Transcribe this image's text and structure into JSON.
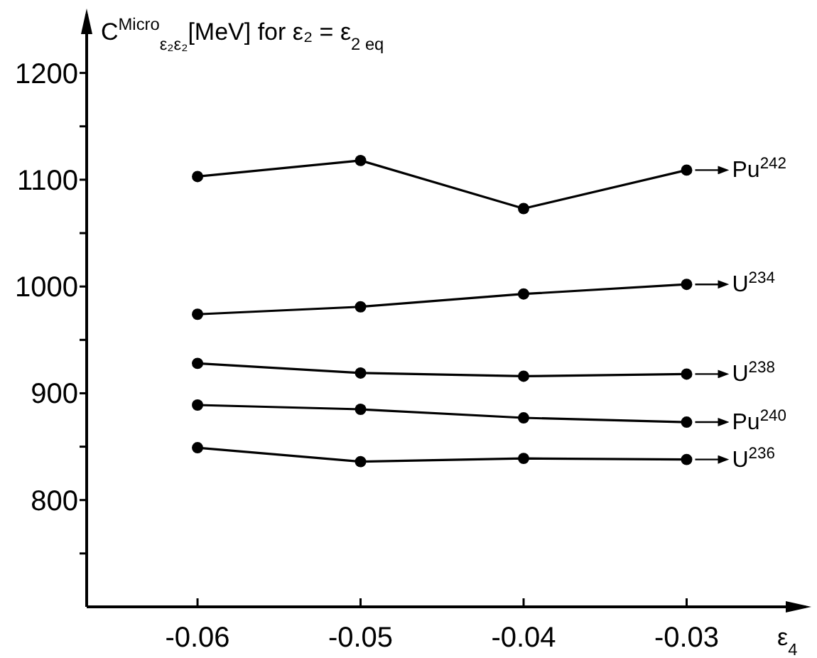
{
  "chart_data": {
    "type": "line",
    "ylabel": "C$^{Micro}$$_{ε₂ε₂}$[MeV]  for ε₂ = ε$_{2 eq}$",
    "xlabel": "ε$_{4}$",
    "x": [
      -0.06,
      -0.05,
      -0.04,
      -0.03
    ],
    "xlim": [
      -0.0668,
      -0.0227
    ],
    "xticks": [
      -0.06,
      -0.05,
      -0.04,
      -0.03
    ],
    "ylim": [
      700,
      1255
    ],
    "yticks": [
      {
        "value": 750,
        "label": null
      },
      800,
      {
        "value": 850,
        "label": null
      },
      900,
      {
        "value": 950,
        "label": null
      },
      1000,
      {
        "value": 1050,
        "label": null
      },
      1100,
      {
        "value": 1150,
        "label": null
      },
      1200
    ],
    "marker": "circle",
    "line_style": "solid",
    "legend": "right",
    "grid": false,
    "series": [
      {
        "name": "Pu$^{242}$",
        "color": "#000000",
        "values": [
          1103,
          1118,
          1073,
          1109
        ]
      },
      {
        "name": "U$^{234}$",
        "color": "#000000",
        "values": [
          974,
          981,
          993,
          1002
        ]
      },
      {
        "name": "U$^{238}$",
        "color": "#000000",
        "values": [
          928,
          919,
          916,
          918
        ]
      },
      {
        "name": "Pu$^{240}$",
        "color": "#000000",
        "values": [
          889,
          885,
          877,
          873
        ]
      },
      {
        "name": "U$^{236}$",
        "color": "#000000",
        "values": [
          849,
          836,
          839,
          838
        ]
      }
    ]
  }
}
